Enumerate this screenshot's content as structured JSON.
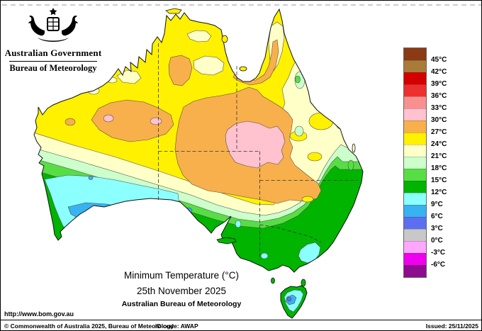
{
  "header": {
    "government": "Australian Government",
    "bureau": "Bureau of Meteorology"
  },
  "title": {
    "main": "Minimum Temperature (°C)",
    "date": "25th November 2025",
    "org": "Australian Bureau of Meteorology"
  },
  "legend": {
    "unit": "°C",
    "labels": [
      "45°C",
      "42°C",
      "39°C",
      "36°C",
      "33°C",
      "30°C",
      "27°C",
      "24°C",
      "21°C",
      "18°C",
      "15°C",
      "12°C",
      "9°C",
      "6°C",
      "3°C",
      "0°C",
      "-3°C",
      "-6°C"
    ],
    "colors": [
      "#8A3A14",
      "#A97B3A",
      "#D40000",
      "#EE2F2F",
      "#F99090",
      "#FFC2CE",
      "#F8B04C",
      "#FFF100",
      "#FFFFC8",
      "#CCFFCC",
      "#57DE45",
      "#00B400",
      "#8CFFFF",
      "#38B2F0",
      "#5B6FF0",
      "#C8C8C8",
      "#FFA6FF",
      "#EE00EE",
      "#8E0C8E"
    ]
  },
  "footer": {
    "url": "http://www.bom.gov.au",
    "copyright": "© Commonwealth of Australia 2025, Bureau of Meteorology",
    "id_code": "ID code: AWAP",
    "issued": "Issued: 25/11/2025"
  }
}
